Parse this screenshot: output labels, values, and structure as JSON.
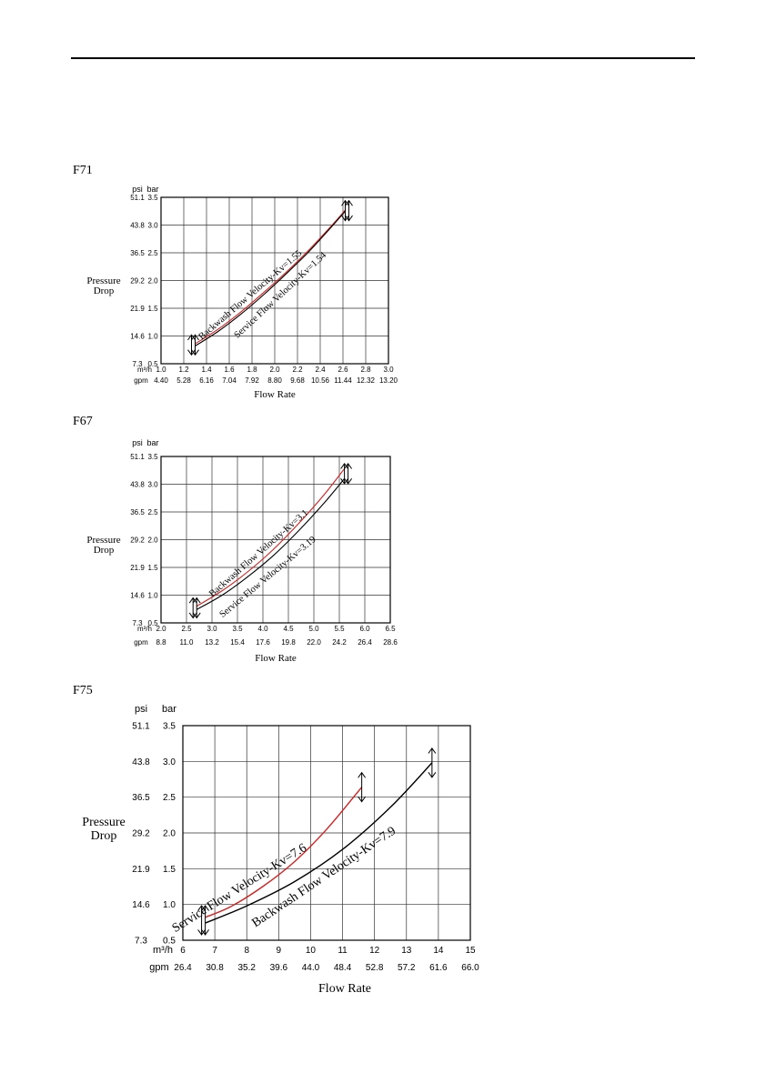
{
  "chart_data": [
    {
      "type": "line",
      "model": "F71",
      "left_axis_top_labels": [
        "psi",
        "bar"
      ],
      "ylabel": [
        "Pressure",
        "Drop"
      ],
      "xlabel": "Flow Rate",
      "x_unit_primary": "m³/h",
      "x_unit_secondary": "gpm",
      "x_ticks": [
        "1.0",
        "1.2",
        "1.4",
        "1.6",
        "1.8",
        "2.0",
        "2.2",
        "2.4",
        "2.6",
        "2.8",
        "3.0"
      ],
      "x_ticks_gpm": [
        "4.40",
        "5.28",
        "6.16",
        "7.04",
        "7.92",
        "8.80",
        "9.68",
        "10.56",
        "11.44",
        "12.32",
        "13.20"
      ],
      "y_ticks_bar": [
        "0.5",
        "1.0",
        "1.5",
        "2.0",
        "2.5",
        "3.0",
        "3.5"
      ],
      "y_ticks_psi": [
        "7.3",
        "14.6",
        "21.9",
        "29.2",
        "36.5",
        "43.8",
        "51.1"
      ],
      "xlim": [
        1.0,
        3.0
      ],
      "ylim": [
        0.5,
        3.5
      ],
      "series": [
        {
          "name": "Backwash Flow Velocity-Kv=1.55",
          "color": "#d42020",
          "x": [
            1.3,
            1.5,
            1.7,
            1.9,
            2.1,
            2.3,
            2.5,
            2.62
          ],
          "y": [
            0.86,
            1.12,
            1.43,
            1.78,
            2.15,
            2.55,
            2.99,
            3.27
          ]
        },
        {
          "name": "Service Flow Velocity-Kv=1.54",
          "color": "#000000",
          "x": [
            1.3,
            1.5,
            1.7,
            1.9,
            2.1,
            2.3,
            2.5,
            2.62
          ],
          "y": [
            0.82,
            1.08,
            1.39,
            1.74,
            2.12,
            2.52,
            2.97,
            3.25
          ]
        }
      ]
    },
    {
      "type": "line",
      "model": "F67",
      "left_axis_top_labels": [
        "psi",
        "bar"
      ],
      "ylabel": [
        "Pressure",
        "Drop"
      ],
      "xlabel": "Flow Rate",
      "x_unit_primary": "m³/h",
      "x_unit_secondary": "gpm",
      "x_ticks": [
        "2.0",
        "2.5",
        "3.0",
        "3.5",
        "4.0",
        "4.5",
        "5.0",
        "5.5",
        "6.0",
        "6.5"
      ],
      "x_ticks_gpm": [
        "8.8",
        "11.0",
        "13.2",
        "15.4",
        "17.6",
        "19.8",
        "22.0",
        "24.2",
        "26.4",
        "28.6"
      ],
      "y_ticks_bar": [
        "0.5",
        "1.0",
        "1.5",
        "2.0",
        "2.5",
        "3.0",
        "3.5"
      ],
      "y_ticks_psi": [
        "7.3",
        "14.6",
        "21.9",
        "29.2",
        "36.5",
        "43.8",
        "51.1"
      ],
      "xlim": [
        2.0,
        6.5
      ],
      "ylim": [
        0.5,
        3.5
      ],
      "series": [
        {
          "name": "Backwash Flow Velocity-Kv=3.1",
          "color": "#d42020",
          "x": [
            2.7,
            3.2,
            3.7,
            4.2,
            4.7,
            5.2,
            5.6
          ],
          "y": [
            0.8,
            1.08,
            1.42,
            1.82,
            2.29,
            2.81,
            3.28
          ]
        },
        {
          "name": "Service Flow Velocity-Kv=3.19",
          "color": "#000000",
          "x": [
            2.7,
            3.2,
            3.7,
            4.2,
            4.7,
            5.2,
            5.6
          ],
          "y": [
            0.74,
            1.0,
            1.33,
            1.71,
            2.16,
            2.66,
            3.1
          ]
        }
      ]
    },
    {
      "type": "line",
      "model": "F75",
      "left_axis_top_labels": [
        "psi",
        "bar"
      ],
      "ylabel": [
        "Pressure",
        "Drop"
      ],
      "xlabel": "Flow Rate",
      "x_unit_primary": "m³/h",
      "x_unit_secondary": "gpm",
      "x_ticks": [
        "6",
        "7",
        "8",
        "9",
        "10",
        "11",
        "12",
        "13",
        "14",
        "15"
      ],
      "x_ticks_gpm": [
        "26.4",
        "30.8",
        "35.2",
        "39.6",
        "44.0",
        "48.4",
        "52.8",
        "57.2",
        "61.6",
        "66.0"
      ],
      "y_ticks_bar": [
        "0.5",
        "1.0",
        "1.5",
        "2.0",
        "2.5",
        "3.0",
        "3.5"
      ],
      "y_ticks_psi": [
        "7.3",
        "14.6",
        "21.9",
        "29.2",
        "36.5",
        "43.8",
        "51.1"
      ],
      "xlim": [
        6,
        15
      ],
      "ylim": [
        0.5,
        3.5
      ],
      "series": [
        {
          "name": "Service Flow Velocity-Kv=7.6",
          "color": "#d42020",
          "x": [
            6.7,
            7.5,
            8.5,
            9.5,
            10.5,
            11.6
          ],
          "y": [
            0.82,
            0.97,
            1.25,
            1.6,
            2.05,
            2.64
          ]
        },
        {
          "name": "Backwash Flow  Velocity-Kv=7.9",
          "color": "#000000",
          "x": [
            6.7,
            8,
            9.5,
            11,
            12.5,
            13.8
          ],
          "y": [
            0.74,
            0.98,
            1.32,
            1.77,
            2.36,
            2.98
          ]
        }
      ]
    }
  ]
}
